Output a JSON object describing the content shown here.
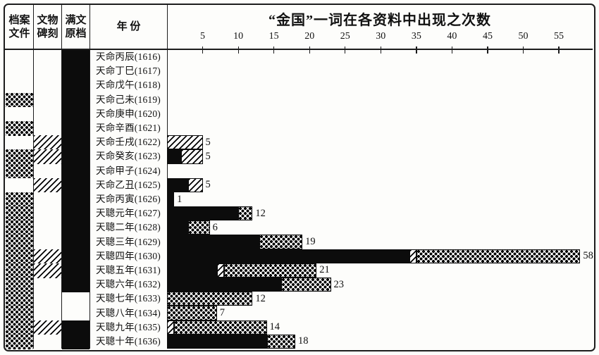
{
  "columns": {
    "archive": "档案\n文件",
    "stele": "文物\n碑刻",
    "manchu": "满文\n原档",
    "year": "年 份"
  },
  "chart_data": {
    "type": "bar",
    "orientation": "horizontal",
    "title": "“金国”一词在各资料中出现之次数",
    "x_ticks": [
      5,
      10,
      15,
      20,
      25,
      30,
      35,
      40,
      45,
      50,
      55
    ],
    "xlim": [
      0,
      60
    ],
    "grid": false,
    "patterns_legend": {
      "solid_black": "满文原档",
      "diagonal_hatch": "文物碑刻",
      "dot_screen": "档案文件"
    },
    "rows": [
      {
        "label": "天命丙辰(1616)",
        "sources": {
          "archive": false,
          "stele": false,
          "manchu": true
        },
        "counts": {
          "manchu": 0,
          "stele": 0,
          "archive": 0
        },
        "total": null
      },
      {
        "label": "天命丁巳(1617)",
        "sources": {
          "archive": false,
          "stele": false,
          "manchu": true
        },
        "counts": {
          "manchu": 0,
          "stele": 0,
          "archive": 0
        },
        "total": null
      },
      {
        "label": "天命戊午(1618)",
        "sources": {
          "archive": false,
          "stele": false,
          "manchu": true
        },
        "counts": {
          "manchu": 0,
          "stele": 0,
          "archive": 0
        },
        "total": null
      },
      {
        "label": "天命己未(1619)",
        "sources": {
          "archive": true,
          "stele": false,
          "manchu": true
        },
        "counts": {
          "manchu": 0,
          "stele": 0,
          "archive": 0
        },
        "total": null
      },
      {
        "label": "天命庚申(1620)",
        "sources": {
          "archive": false,
          "stele": false,
          "manchu": true
        },
        "counts": {
          "manchu": 0,
          "stele": 0,
          "archive": 0
        },
        "total": null
      },
      {
        "label": "天命辛酉(1621)",
        "sources": {
          "archive": true,
          "stele": false,
          "manchu": true
        },
        "counts": {
          "manchu": 0,
          "stele": 0,
          "archive": 0
        },
        "total": null
      },
      {
        "label": "天命壬戌(1622)",
        "sources": {
          "archive": false,
          "stele": true,
          "manchu": true
        },
        "counts": {
          "manchu": 0,
          "stele": 5,
          "archive": 0
        },
        "total": 5
      },
      {
        "label": "天命癸亥(1623)",
        "sources": {
          "archive": true,
          "stele": true,
          "manchu": true
        },
        "counts": {
          "manchu": 2,
          "stele": 3,
          "archive": 0
        },
        "total": 5
      },
      {
        "label": "天命甲子(1624)",
        "sources": {
          "archive": true,
          "stele": false,
          "manchu": true
        },
        "counts": {
          "manchu": 0,
          "stele": 0,
          "archive": 0
        },
        "total": null
      },
      {
        "label": "天命乙丑(1625)",
        "sources": {
          "archive": false,
          "stele": true,
          "manchu": true
        },
        "counts": {
          "manchu": 3,
          "stele": 2,
          "archive": 0
        },
        "total": 5
      },
      {
        "label": "天命丙寅(1626)",
        "sources": {
          "archive": true,
          "stele": false,
          "manchu": true
        },
        "counts": {
          "manchu": 1,
          "stele": 0,
          "archive": 0
        },
        "total": 1
      },
      {
        "label": "天聰元年(1627)",
        "sources": {
          "archive": true,
          "stele": false,
          "manchu": true
        },
        "counts": {
          "manchu": 10,
          "stele": 0,
          "archive": 2
        },
        "total": 12
      },
      {
        "label": "天聰二年(1628)",
        "sources": {
          "archive": true,
          "stele": false,
          "manchu": true
        },
        "counts": {
          "manchu": 3,
          "stele": 0,
          "archive": 3
        },
        "total": 6
      },
      {
        "label": "天聰三年(1629)",
        "sources": {
          "archive": true,
          "stele": false,
          "manchu": true
        },
        "counts": {
          "manchu": 13,
          "stele": 0,
          "archive": 6
        },
        "total": 19
      },
      {
        "label": "天聰四年(1630)",
        "sources": {
          "archive": true,
          "stele": true,
          "manchu": true
        },
        "counts": {
          "manchu": 34,
          "stele": 1,
          "archive": 23
        },
        "total": 58
      },
      {
        "label": "天聰五年(1631)",
        "sources": {
          "archive": true,
          "stele": true,
          "manchu": true
        },
        "counts": {
          "manchu": 7,
          "stele": 1,
          "archive": 13
        },
        "total": 21
      },
      {
        "label": "天聰六年(1632)",
        "sources": {
          "archive": true,
          "stele": false,
          "manchu": true
        },
        "counts": {
          "manchu": 16,
          "stele": 0,
          "archive": 7
        },
        "total": 23
      },
      {
        "label": "天聰七年(1633)",
        "sources": {
          "archive": true,
          "stele": false,
          "manchu": false
        },
        "counts": {
          "manchu": 0,
          "stele": 0,
          "archive": 12
        },
        "total": 12
      },
      {
        "label": "天聰八年(1634)",
        "sources": {
          "archive": true,
          "stele": false,
          "manchu": false
        },
        "counts": {
          "manchu": 0,
          "stele": 0,
          "archive": 7
        },
        "total": 7
      },
      {
        "label": "天聰九年(1635)",
        "sources": {
          "archive": true,
          "stele": true,
          "manchu": true
        },
        "counts": {
          "manchu": 0,
          "stele": 1,
          "archive": 13
        },
        "total": 14
      },
      {
        "label": "天聰十年(1636)",
        "sources": {
          "archive": true,
          "stele": false,
          "manchu": true
        },
        "counts": {
          "manchu": 14,
          "stele": 0,
          "archive": 4
        },
        "total": 18
      }
    ]
  }
}
